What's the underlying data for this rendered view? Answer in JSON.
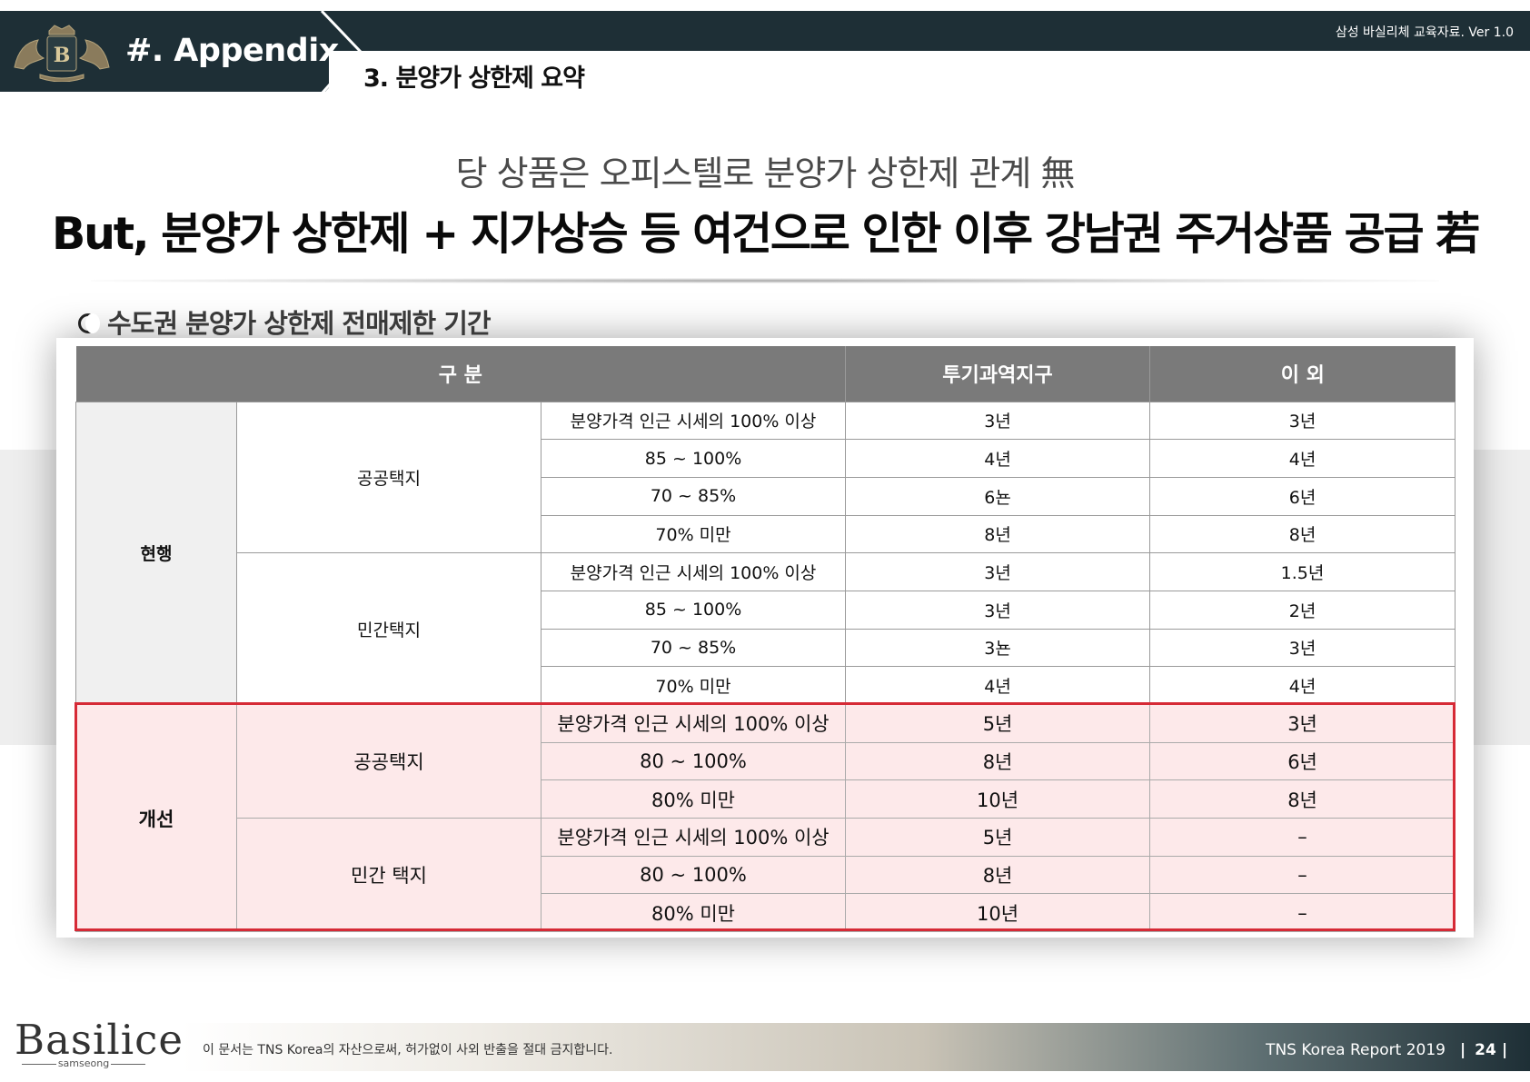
{
  "header": {
    "appendix_title": "#. Appendix",
    "section_title": "3. 분양가 상한제 요약",
    "doc_version": "삼성 바실리체 교육자료. Ver  1.0"
  },
  "headline": {
    "sub": "당 상품은 오피스텔로 분양가 상한제 관계 無",
    "main": "But, 분양가 상한제 + 지가상승 등 여건으로 인한 이후 강남권 주거상품 공급 若"
  },
  "section_label": "수도권 분양가 상한제 전매제한 기간",
  "table": {
    "headers": {
      "category": "구 분",
      "speculative": "투기과역지구",
      "other": "이 외"
    },
    "current": {
      "label": "현행",
      "public": {
        "label": "공공택지",
        "rows": [
          {
            "range": "분양가격 인근 시세의 100% 이상",
            "spec": "3년",
            "other": "3년"
          },
          {
            "range": "85 ~ 100%",
            "spec": "4년",
            "other": "4년"
          },
          {
            "range": "70 ~ 85%",
            "spec": "6뇬",
            "other": "6년"
          },
          {
            "range": "70% 미만",
            "spec": "8년",
            "other": "8년"
          }
        ]
      },
      "private": {
        "label": "민간택지",
        "rows": [
          {
            "range": "분양가격 인근 시세의 100% 이상",
            "spec": "3년",
            "other": "1.5년"
          },
          {
            "range": "85 ~ 100%",
            "spec": "3년",
            "other": "2년"
          },
          {
            "range": "70 ~ 85%",
            "spec": "3뇬",
            "other": "3년"
          },
          {
            "range": "70% 미만",
            "spec": "4년",
            "other": "4년"
          }
        ]
      }
    },
    "improved": {
      "label": "개선",
      "public": {
        "label": "공공택지",
        "rows": [
          {
            "range": "분양가격 인근 시세의 100% 이상",
            "spec": "5년",
            "other": "3년"
          },
          {
            "range": "80 ~ 100%",
            "spec": "8년",
            "other": "6년"
          },
          {
            "range": "80% 미만",
            "spec": "10년",
            "other": "8년"
          }
        ]
      },
      "private": {
        "label": "민간 택지",
        "rows": [
          {
            "range": "분양가격 인근 시세의 100% 이상",
            "spec": "5년",
            "other": "–"
          },
          {
            "range": "80 ~ 100%",
            "spec": "8년",
            "other": "–"
          },
          {
            "range": "80% 미만",
            "spec": "10년",
            "other": "–"
          }
        ]
      }
    }
  },
  "footer": {
    "logo": "Basilice",
    "logo_sub": "samseong",
    "copyright": "이 문서는 TNS Korea의 자산으로써, 허가없이 사외 반출을 절대 금지합니다.",
    "report_name": "TNS Korea Report 2019",
    "page_number": "24"
  },
  "colors": {
    "header_bg": "#1e2f36",
    "table_header_bg": "#7a7a7a",
    "highlight_border": "#d62a36",
    "highlight_fill": "#fde9ea"
  },
  "icons": [
    "emblem-logo-icon",
    "circle-bullet-icon"
  ]
}
